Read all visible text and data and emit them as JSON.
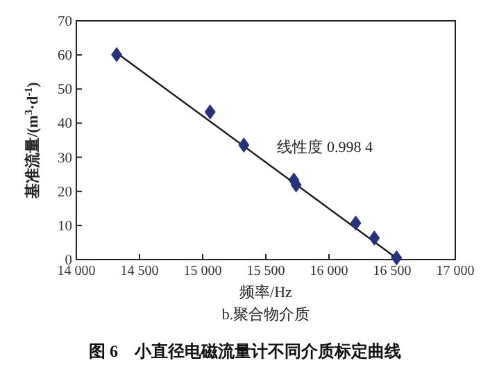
{
  "chart_data": {
    "type": "scatter",
    "title": "图 6　小直径电磁流量计不同介质标定曲线",
    "subtitle": "b.聚合物介质",
    "xlabel": "频率/Hz",
    "ylabel": "基准流量/(m$^{3}$·d$^{-1}$)",
    "xlim": [
      14000,
      17000
    ],
    "ylim": [
      0,
      70
    ],
    "xticks": [
      {
        "value": 14000,
        "label": "14 000"
      },
      {
        "value": 14500,
        "label": "14 500"
      },
      {
        "value": 15000,
        "label": "15 000"
      },
      {
        "value": 15500,
        "label": "15 500"
      },
      {
        "value": 16000,
        "label": "16 000"
      },
      {
        "value": 16500,
        "label": "16 500"
      },
      {
        "value": 17000,
        "label": "17 000"
      }
    ],
    "yticks": [
      0,
      10,
      20,
      30,
      40,
      50,
      60,
      70
    ],
    "grid": false,
    "marker": "diamond",
    "annotations": [
      "线性度  0.998 4"
    ],
    "series": [
      {
        "color": "#27327a",
        "x": [
          14319,
          15059,
          15326,
          15722,
          15740,
          16212,
          16359,
          16535
        ],
        "values": [
          60.1,
          43.3,
          33.6,
          23.3,
          21.9,
          10.7,
          6.3,
          0.5
        ]
      },
      {
        "type": "line",
        "color": "#1a1a1a",
        "marker": "none",
        "x": [
          14319,
          16535
        ],
        "values": [
          60.6,
          0.4
        ]
      }
    ]
  }
}
